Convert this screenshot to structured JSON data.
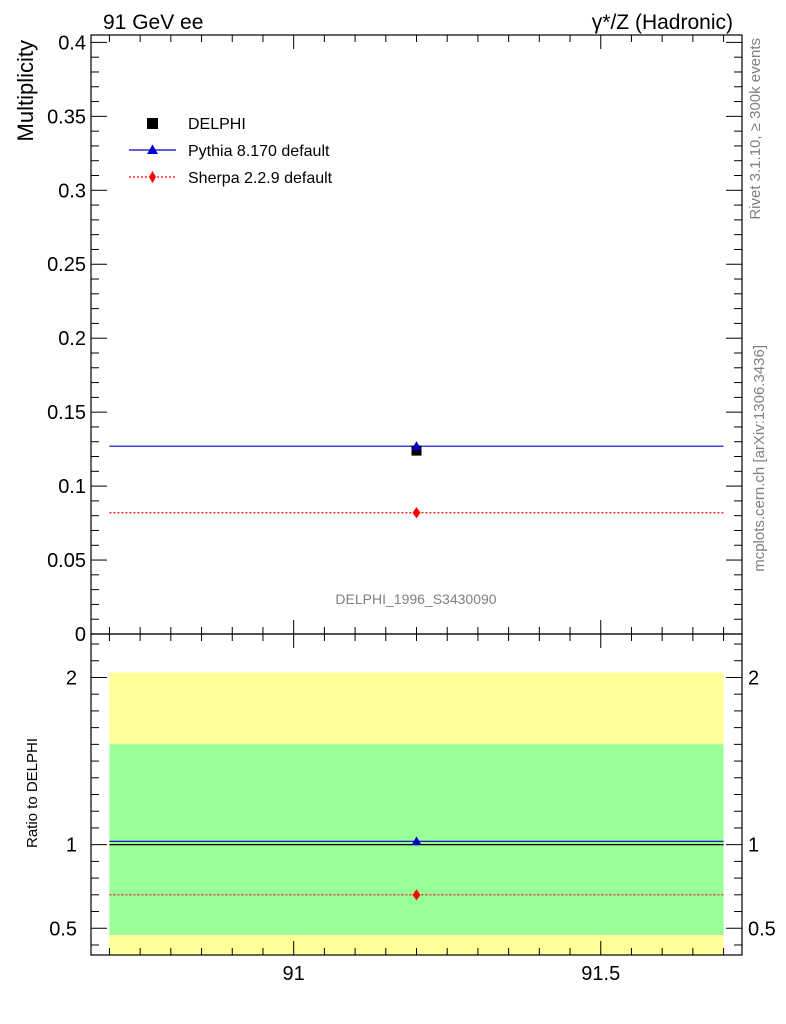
{
  "header": {
    "left_title": "91 GeV ee",
    "right_title": "γ*/Z (Hadronic)"
  },
  "side_text": {
    "rivet": "Rivet 3.1.10, ≥ 300k events",
    "source": "mcplots.cern.ch [arXiv:1306.3436]"
  },
  "colors": {
    "data": "#000000",
    "pythia": "#0000cc",
    "sherpa": "#ff0000",
    "band_inner": "#99ff99",
    "band_outer": "#ffff99"
  },
  "chart_data": [
    {
      "type": "scatter",
      "title": "",
      "xlabel": "",
      "ylabel": "Multiplicity",
      "watermark": "DELPHI_1996_S3430090",
      "xlim": [
        90.67,
        91.73
      ],
      "ylim": [
        0,
        0.405
      ],
      "x_ticks": [],
      "y_ticks": [
        0,
        0.05,
        0.1,
        0.15,
        0.2,
        0.25,
        0.3,
        0.35,
        0.4
      ],
      "y_tick_labels": [
        "0",
        "0.05",
        "0.1",
        "0.15",
        "0.2",
        "0.25",
        "0.3",
        "0.35",
        "0.4"
      ],
      "legend_position": "top-left",
      "series": [
        {
          "name": "DELPHI",
          "marker": "square",
          "x": [
            91.2
          ],
          "y": [
            0.124
          ],
          "xerr": [
            0.0
          ],
          "yerr": [
            0.0
          ]
        },
        {
          "name": "Pythia 8.170 default",
          "marker": "triangle",
          "line": "solid",
          "x": [
            91.2
          ],
          "y": [
            0.127
          ],
          "xrange": [
            90.7,
            91.7
          ]
        },
        {
          "name": "Sherpa 2.2.9 default",
          "marker": "diamond",
          "line": "dotted",
          "x": [
            91.2
          ],
          "y": [
            0.082
          ],
          "xrange": [
            90.7,
            91.7
          ]
        }
      ]
    },
    {
      "type": "scatter",
      "title": "",
      "xlabel": "",
      "ylabel": "Ratio to DELPHI",
      "xlim": [
        90.67,
        91.73
      ],
      "ylim": [
        0.34,
        2.26
      ],
      "x_ticks": [
        91,
        91.5
      ],
      "x_tick_labels": [
        "91",
        "91.5"
      ],
      "y_ticks": [
        0.5,
        1,
        2
      ],
      "y_tick_labels": [
        "0.5",
        "1",
        "2"
      ],
      "bands": [
        {
          "name": "outer",
          "x_range": [
            90.7,
            91.7
          ],
          "y_range": [
            0.34,
            2.03
          ]
        },
        {
          "name": "inner",
          "x_range": [
            90.7,
            91.7
          ],
          "y_range": [
            0.46,
            1.6
          ]
        }
      ],
      "series": [
        {
          "name": "DELPHI",
          "line": "solid",
          "x": [
            91.2
          ],
          "y": [
            1.0
          ],
          "xrange": [
            90.7,
            91.7
          ]
        },
        {
          "name": "Pythia 8.170 default",
          "marker": "triangle",
          "line": "solid",
          "x": [
            91.2
          ],
          "y": [
            1.02
          ],
          "xrange": [
            90.7,
            91.7
          ]
        },
        {
          "name": "Sherpa 2.2.9 default",
          "marker": "diamond",
          "line": "dotted",
          "x": [
            91.2
          ],
          "y": [
            0.7
          ],
          "xrange": [
            90.7,
            91.7
          ]
        }
      ]
    }
  ]
}
